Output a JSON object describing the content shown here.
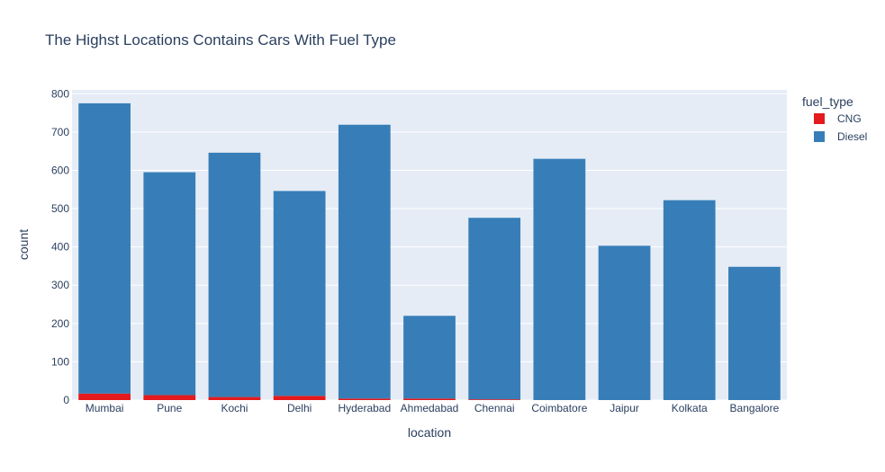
{
  "chart_data": {
    "type": "bar",
    "stacked": true,
    "title": "The Highst Locations Contains Cars With Fuel Type",
    "xlabel": "location",
    "ylabel": "count",
    "ylim": [
      0,
      810
    ],
    "yticks": [
      0,
      100,
      200,
      300,
      400,
      500,
      600,
      700,
      800
    ],
    "grid": true,
    "legend_title": "fuel_type",
    "legend_position": "top-right",
    "categories": [
      "Mumbai",
      "Pune",
      "Kochi",
      "Delhi",
      "Hyderabad",
      "Ahmedabad",
      "Chennai",
      "Coimbatore",
      "Jaipur",
      "Kolkata",
      "Bangalore"
    ],
    "series": [
      {
        "name": "CNG",
        "color": "#e41a1c",
        "values": [
          17,
          13,
          8,
          11,
          4,
          4,
          2,
          0,
          0,
          0,
          0
        ]
      },
      {
        "name": "Diesel",
        "color": "#377eb8",
        "values": [
          758,
          582,
          638,
          535,
          715,
          216,
          474,
          630,
          403,
          522,
          348
        ]
      }
    ],
    "colors": {
      "plot_bg": "#e5ecf6",
      "grid": "#ffffff",
      "text": "#2a3f5f"
    }
  }
}
